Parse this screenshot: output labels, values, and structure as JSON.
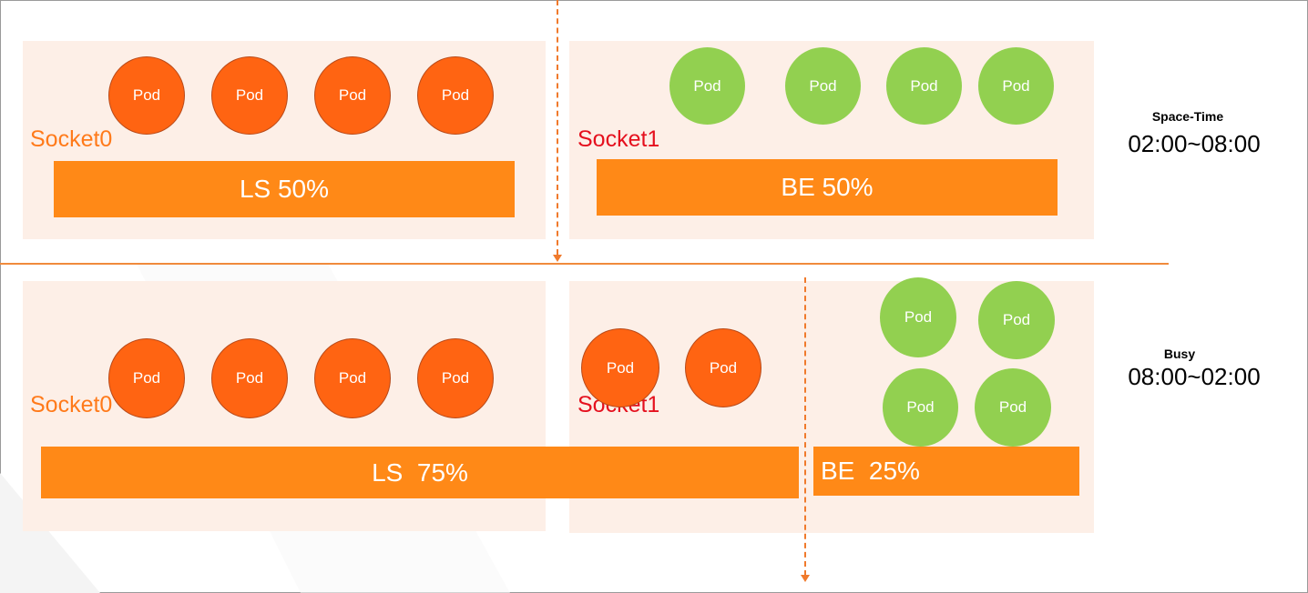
{
  "colors": {
    "ls_pod": "#ff6412",
    "be_pod": "#92d050",
    "bar": "#ff8917",
    "socket0_label": "#ff7a1a",
    "socket1_label": "#e5101e",
    "panel": "#fdefe7"
  },
  "pod_label": "Pod",
  "top": {
    "socket0_label": "Socket0",
    "socket1_label": "Socket1",
    "ls_bar": "LS 50%",
    "be_bar": "BE 50%",
    "period_title": "Space-Time",
    "period_time": "02:00~08:00"
  },
  "bottom": {
    "socket0_label": "Socket0",
    "socket1_label": "Socket1",
    "ls_bar": "LS  75%",
    "be_bar": "BE  25%",
    "period_title": "Busy",
    "period_time": "08:00~02:00"
  }
}
